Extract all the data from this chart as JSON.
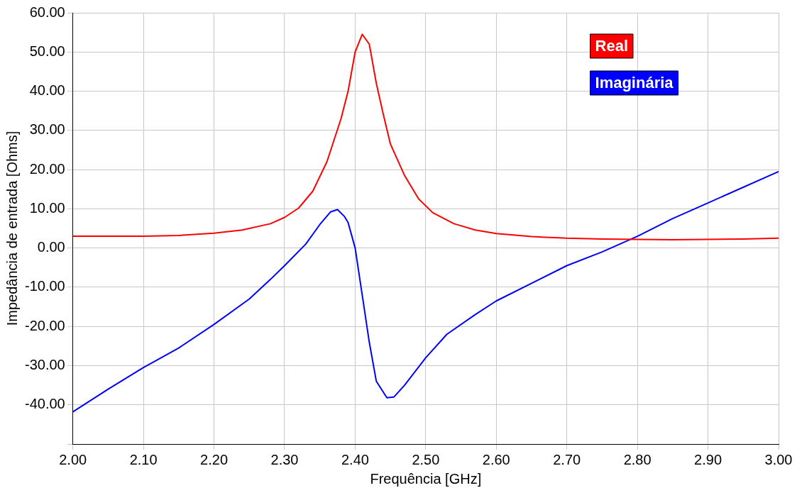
{
  "chart_data": {
    "type": "line",
    "xlabel": "Frequência [GHz]",
    "ylabel": "Impedância de entrada [Ohms]",
    "xlim": [
      2.0,
      3.0
    ],
    "ylim": [
      -50,
      60
    ],
    "xticks": [
      {
        "value": 2.0,
        "label": "2.00"
      },
      {
        "value": 2.1,
        "label": "2.10"
      },
      {
        "value": 2.2,
        "label": "2.20"
      },
      {
        "value": 2.3,
        "label": "2.30"
      },
      {
        "value": 2.4,
        "label": "2.40"
      },
      {
        "value": 2.5,
        "label": "2.50"
      },
      {
        "value": 2.6,
        "label": "2.60"
      },
      {
        "value": 2.7,
        "label": "2.70"
      },
      {
        "value": 2.8,
        "label": "2.80"
      },
      {
        "value": 2.9,
        "label": "2.90"
      },
      {
        "value": 3.0,
        "label": "3.00"
      }
    ],
    "yticks": [
      {
        "value": -50,
        "label": null
      },
      {
        "value": -40,
        "label": "-40.00"
      },
      {
        "value": -30,
        "label": "-30.00"
      },
      {
        "value": -20,
        "label": "-20.00"
      },
      {
        "value": -10,
        "label": "-10.00"
      },
      {
        "value": 0,
        "label": "0.00"
      },
      {
        "value": 10,
        "label": "10.00"
      },
      {
        "value": 20,
        "label": "20.00"
      },
      {
        "value": 30,
        "label": "30.00"
      },
      {
        "value": 40,
        "label": "40.00"
      },
      {
        "value": 50,
        "label": "50.00"
      },
      {
        "value": 60,
        "label": "60.00"
      }
    ],
    "grid": true,
    "legend": "top right",
    "marker": "none",
    "line_style": "solid",
    "series": [
      {
        "name": "Real",
        "color": "#ff0000",
        "x": [
          2.0,
          2.1,
          2.15,
          2.2,
          2.24,
          2.28,
          2.3,
          2.32,
          2.34,
          2.36,
          2.38,
          2.39,
          2.4,
          2.41,
          2.42,
          2.43,
          2.44,
          2.45,
          2.47,
          2.49,
          2.51,
          2.54,
          2.57,
          2.6,
          2.65,
          2.7,
          2.75,
          2.8,
          2.85,
          2.9,
          2.95,
          3.0
        ],
        "values": [
          3.0,
          3.0,
          3.2,
          3.8,
          4.6,
          6.2,
          7.8,
          10.2,
          14.5,
          22,
          33,
          40,
          50,
          54.5,
          52,
          42,
          34,
          26.5,
          18.5,
          12.5,
          9,
          6.2,
          4.6,
          3.7,
          2.9,
          2.5,
          2.3,
          2.2,
          2.1,
          2.2,
          2.3,
          2.5
        ]
      },
      {
        "name": "Imaginária",
        "color": "#0000ff",
        "x": [
          2.0,
          2.05,
          2.1,
          2.15,
          2.2,
          2.25,
          2.28,
          2.3,
          2.33,
          2.35,
          2.365,
          2.375,
          2.385,
          2.39,
          2.4,
          2.41,
          2.42,
          2.43,
          2.445,
          2.455,
          2.47,
          2.5,
          2.53,
          2.57,
          2.6,
          2.65,
          2.7,
          2.75,
          2.8,
          2.85,
          2.9,
          2.95,
          3.0
        ],
        "values": [
          -41.8,
          -36,
          -30.5,
          -25.5,
          -19.5,
          -13,
          -8,
          -4.5,
          1,
          6,
          9.2,
          9.8,
          8,
          6.5,
          0,
          -12,
          -24,
          -34,
          -38.2,
          -38,
          -35,
          -28,
          -22,
          -17,
          -13.5,
          -9,
          -4.5,
          -1,
          3,
          7.5,
          11.5,
          15.5,
          19.5
        ]
      }
    ]
  }
}
